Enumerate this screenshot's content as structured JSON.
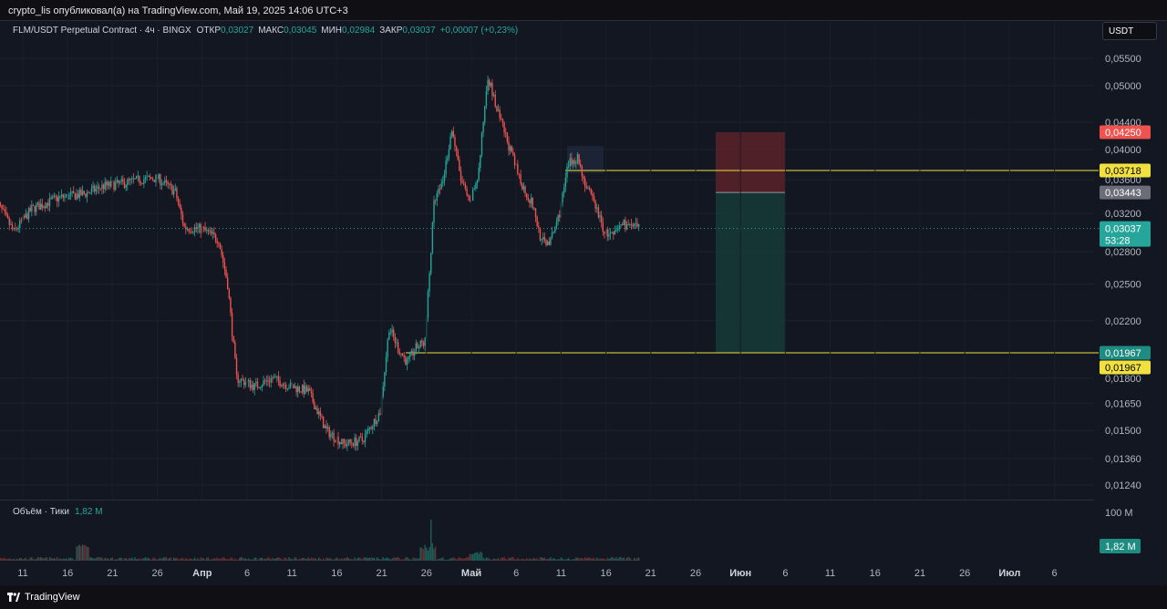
{
  "header": {
    "publish_text": "crypto_lis опубликовал(а) на TradingView.com, Май 19, 2025 14:06 UTC+3"
  },
  "legend": {
    "symbol": "FLM/USDT Perpetual Contract · 4ч · BINGX",
    "open_label": "ОТКР",
    "open": "0,03027",
    "high_label": "МАКС",
    "high": "0,03045",
    "low_label": "МИН",
    "low": "0,02984",
    "close_label": "ЗАКР",
    "close": "0,03037",
    "change": "+0,00007 (+0,23%)"
  },
  "currency_button": "USDT",
  "volume_legend": {
    "label": "Объём · Тики",
    "value": "1,82 M"
  },
  "footer": {
    "brand": "TradingView"
  },
  "colors": {
    "up": "#26a69a",
    "down": "#ef5350",
    "bg": "#131722",
    "level": "#f0e040",
    "stop_zone": "#5a2228",
    "target_zone": "#163836"
  },
  "chart_data": {
    "type": "candlestick",
    "price_axis": {
      "ticks": [
        "0,05500",
        "0,05000",
        "0,04400",
        "0,04000",
        "0,03600",
        "0,03200",
        "0,02800",
        "0,02500",
        "0,02200",
        "0,01800",
        "0,01650",
        "0,01500",
        "0,01360",
        "0,01240"
      ],
      "scale": "log"
    },
    "time_axis": {
      "ticks": [
        {
          "label": "11",
          "bold": false
        },
        {
          "label": "16",
          "bold": false
        },
        {
          "label": "21",
          "bold": false
        },
        {
          "label": "26",
          "bold": false
        },
        {
          "label": "Апр",
          "bold": true
        },
        {
          "label": "6",
          "bold": false
        },
        {
          "label": "11",
          "bold": false
        },
        {
          "label": "16",
          "bold": false
        },
        {
          "label": "21",
          "bold": false
        },
        {
          "label": "26",
          "bold": false
        },
        {
          "label": "Май",
          "bold": true
        },
        {
          "label": "6",
          "bold": false
        },
        {
          "label": "11",
          "bold": false
        },
        {
          "label": "16",
          "bold": false
        },
        {
          "label": "21",
          "bold": false
        },
        {
          "label": "26",
          "bold": false
        },
        {
          "label": "Июн",
          "bold": true
        },
        {
          "label": "6",
          "bold": false
        },
        {
          "label": "11",
          "bold": false
        },
        {
          "label": "16",
          "bold": false
        },
        {
          "label": "21",
          "bold": false
        },
        {
          "label": "26",
          "bold": false
        },
        {
          "label": "Июл",
          "bold": true
        },
        {
          "label": "6",
          "bold": false
        }
      ]
    },
    "price_path": [
      [
        "Mar 8",
        0.0335
      ],
      [
        "Mar 10",
        0.03
      ],
      [
        "Mar 12",
        0.0325
      ],
      [
        "Mar 15",
        0.0338
      ],
      [
        "Mar 18",
        0.0343
      ],
      [
        "Mar 20",
        0.0352
      ],
      [
        "Mar 22",
        0.0355
      ],
      [
        "Mar 24",
        0.036
      ],
      [
        "Mar 26",
        0.0362
      ],
      [
        "Mar 28",
        0.0345
      ],
      [
        "Mar 29",
        0.0305
      ],
      [
        "Mar 31",
        0.0303
      ],
      [
        "Apr 2",
        0.0292
      ],
      [
        "Apr 3",
        0.025
      ],
      [
        "Apr 4",
        0.018
      ],
      [
        "Apr 6",
        0.0175
      ],
      [
        "Apr 8",
        0.018
      ],
      [
        "Apr 10",
        0.0175
      ],
      [
        "Apr 12",
        0.0172
      ],
      [
        "Apr 14",
        0.015
      ],
      [
        "Apr 16",
        0.0143
      ],
      [
        "Apr 18",
        0.0145
      ],
      [
        "Apr 20",
        0.016
      ],
      [
        "Apr 21",
        0.0215
      ],
      [
        "Apr 22",
        0.02
      ],
      [
        "Apr 23",
        0.019
      ],
      [
        "Apr 24",
        0.02
      ],
      [
        "Apr 25",
        0.0205
      ],
      [
        "Apr 26",
        0.033
      ],
      [
        "Apr 27",
        0.036
      ],
      [
        "Apr 28",
        0.043
      ],
      [
        "Apr 29",
        0.036
      ],
      [
        "Apr 30",
        0.033
      ],
      [
        "May 1",
        0.037
      ],
      [
        "May 2",
        0.052
      ],
      [
        "May 3",
        0.046
      ],
      [
        "May 4",
        0.042
      ],
      [
        "May 5",
        0.038
      ],
      [
        "May 6",
        0.035
      ],
      [
        "May 7",
        0.033
      ],
      [
        "May 8",
        0.029
      ],
      [
        "May 9",
        0.029
      ],
      [
        "May 10",
        0.032
      ],
      [
        "May 11",
        0.038
      ],
      [
        "May 12",
        0.039
      ],
      [
        "May 13",
        0.035
      ],
      [
        "May 14",
        0.033
      ],
      [
        "May 15",
        0.03
      ],
      [
        "May 16",
        0.0295
      ],
      [
        "May 17",
        0.031
      ],
      [
        "May 18",
        0.0305
      ],
      [
        "May 19",
        0.03037
      ]
    ],
    "levels": [
      {
        "label": "0,03718",
        "value": 0.03718
      },
      {
        "label": "0,01967",
        "value": 0.01967
      }
    ],
    "position": {
      "stop_label": "0,04250",
      "stop": 0.0425,
      "entry_label": "0,03443",
      "entry": 0.03443,
      "target_label": "0,01967",
      "target": 0.01967
    },
    "current_price": {
      "label": "0,03037",
      "timer": "53:28",
      "value": 0.03037
    },
    "volume": {
      "axis_label": "100 M",
      "last_label": "1,82 M"
    }
  }
}
